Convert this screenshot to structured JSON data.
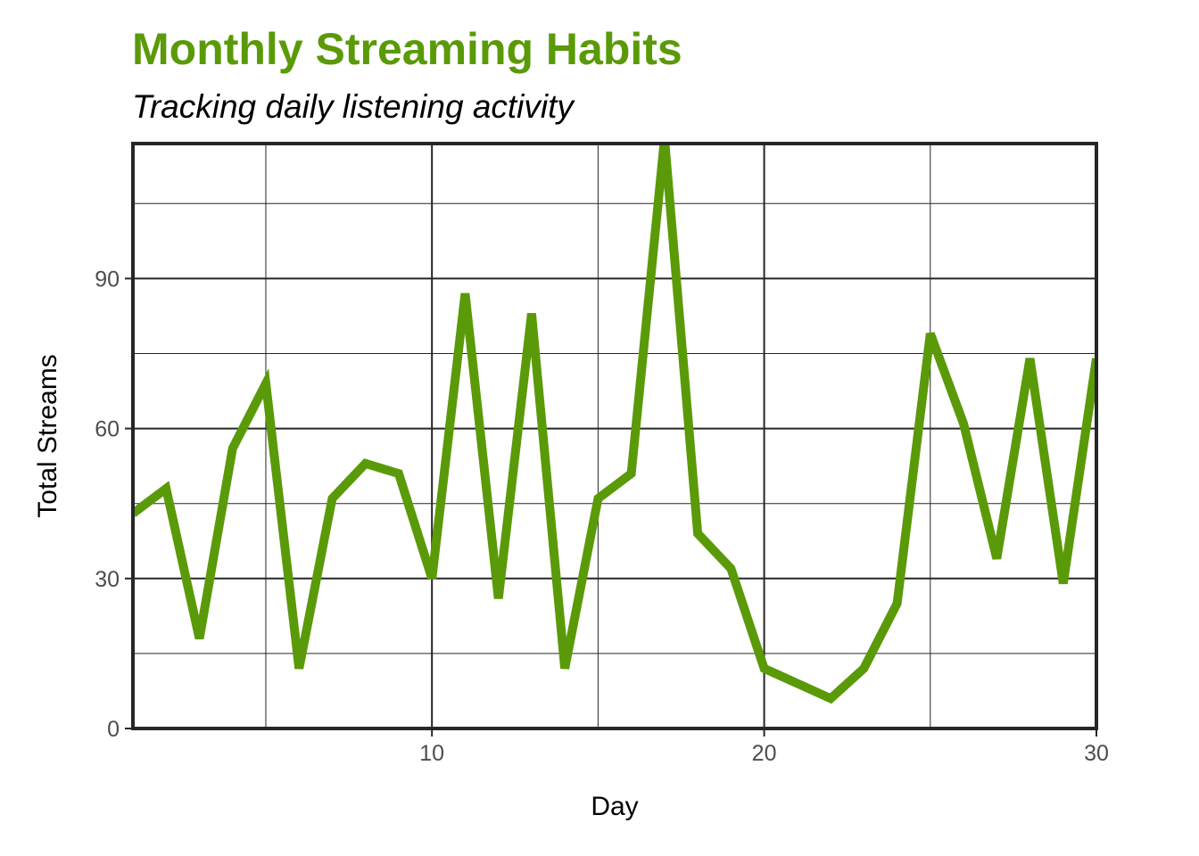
{
  "chart_data": {
    "type": "line",
    "title": "Monthly Streaming Habits",
    "subtitle": "Tracking daily listening activity",
    "xlabel": "Day",
    "ylabel": "Total Streams",
    "xlim": [
      1,
      30
    ],
    "ylim": [
      0,
      117
    ],
    "x_ticks": [
      10,
      20,
      30
    ],
    "y_ticks": [
      0,
      30,
      60,
      90
    ],
    "x_minor_ticks": [
      5,
      15,
      25
    ],
    "y_minor_ticks": [
      15,
      45,
      75,
      105
    ],
    "grid": true,
    "legend": "none",
    "line_color": "#5a9a08",
    "series": [
      {
        "x": [
          1,
          2,
          3,
          4,
          5,
          6,
          7,
          8,
          9,
          10,
          11,
          12,
          13,
          14,
          15,
          16,
          17,
          18,
          19,
          20,
          21,
          22,
          23,
          24,
          25,
          26,
          27,
          28,
          29,
          30
        ],
        "values": [
          43,
          48,
          18,
          56,
          69,
          12,
          46,
          53,
          51,
          30,
          87,
          26,
          83,
          12,
          46,
          51,
          118,
          39,
          32,
          12,
          9,
          6,
          12,
          25,
          79,
          61,
          34,
          74,
          29,
          74
        ]
      }
    ]
  }
}
